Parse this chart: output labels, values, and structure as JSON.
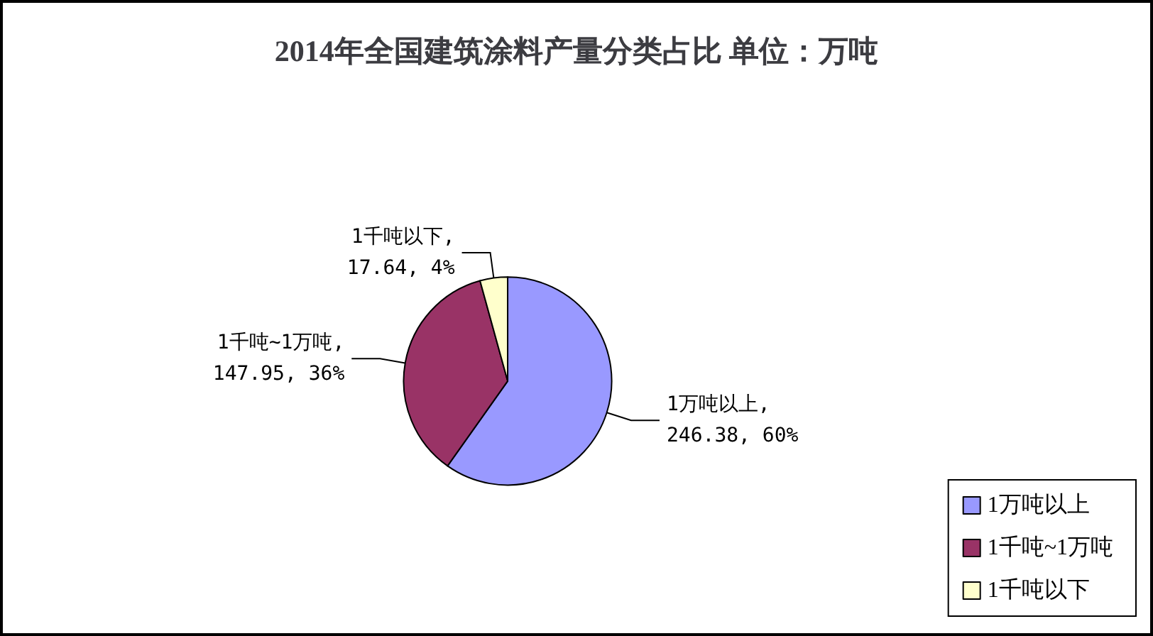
{
  "chart_data": {
    "type": "pie",
    "title": "2014年全国建筑涂料产量分类占比 单位：万吨",
    "categories": [
      "1万吨以上",
      "1千吨~1万吨",
      "1千吨以下"
    ],
    "values": [
      246.38,
      147.95,
      17.64
    ],
    "colors": [
      "#9999ff",
      "#993366",
      "#ffffcc"
    ],
    "value_labels": [
      "1万吨以上,\n246.38, 60%",
      "1千吨~1万吨,\n147.95, 36%",
      "1千吨以下,\n17.64, 4%"
    ],
    "legend": "bottom right"
  }
}
